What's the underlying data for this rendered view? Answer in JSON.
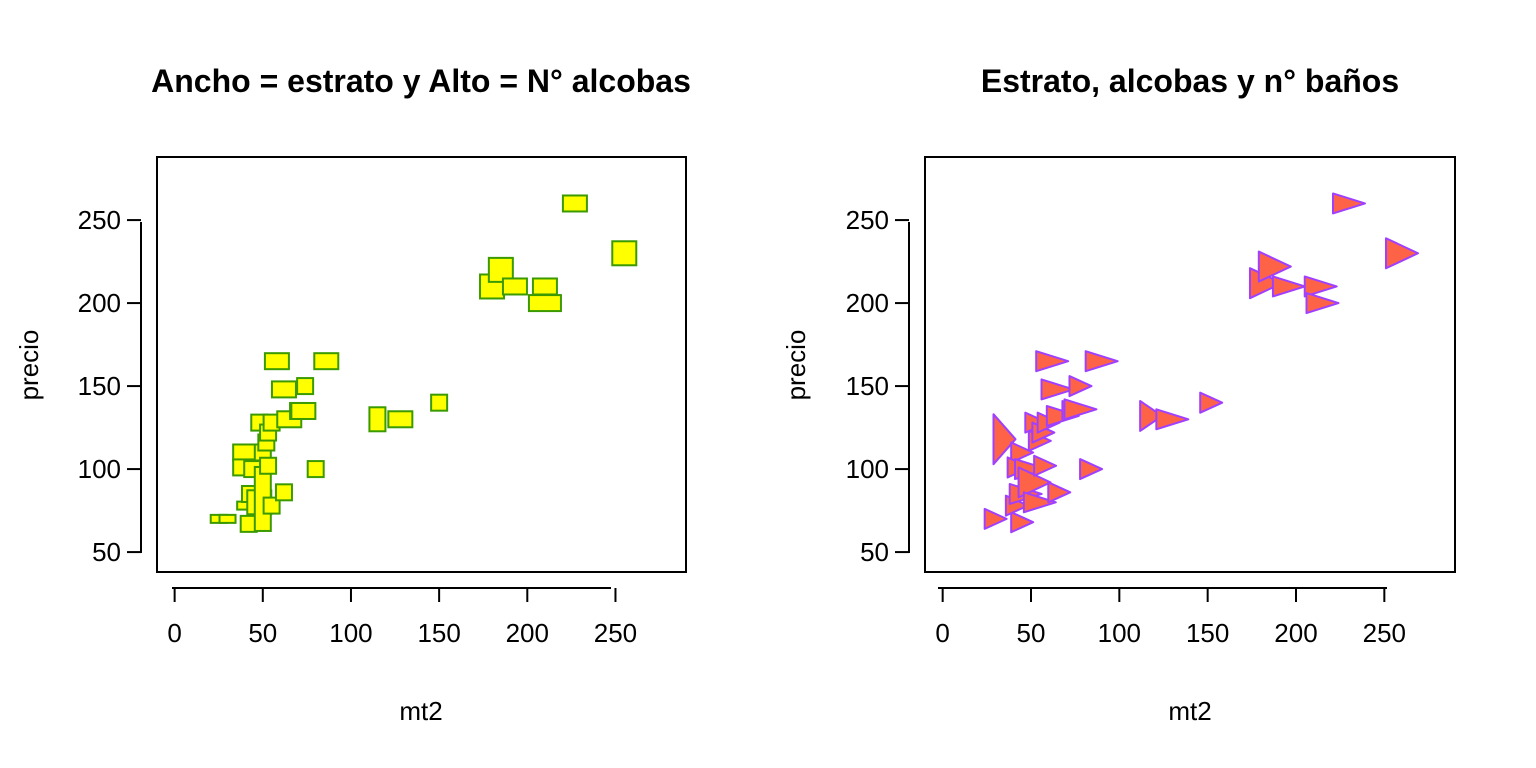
{
  "chart_data": [
    {
      "type": "scatter",
      "title": "Ancho = estrato y Alto = N° alcobas",
      "xlabel": "mt2",
      "ylabel": "precio",
      "xlim": [
        -10,
        290
      ],
      "ylim": [
        38,
        288
      ],
      "xticks": [
        0,
        50,
        100,
        150,
        200,
        250
      ],
      "yticks": [
        50,
        100,
        150,
        200,
        250
      ],
      "marker": "rectangle",
      "marker_fill": "#ffff00",
      "marker_stroke": "#3a9a00",
      "marker_size_encoding": "width = estrato, height = N° alcobas",
      "points": [
        {
          "x": 25,
          "y": 70,
          "w": 2,
          "h": 1
        },
        {
          "x": 30,
          "y": 70,
          "w": 2,
          "h": 1
        },
        {
          "x": 40,
          "y": 78,
          "w": 2,
          "h": 1
        },
        {
          "x": 40,
          "y": 110,
          "w": 3,
          "h": 2
        },
        {
          "x": 40,
          "y": 101,
          "w": 3,
          "h": 2
        },
        {
          "x": 42,
          "y": 67,
          "w": 2,
          "h": 2
        },
        {
          "x": 45,
          "y": 85,
          "w": 3,
          "h": 2
        },
        {
          "x": 44,
          "y": 100,
          "w": 2,
          "h": 2
        },
        {
          "x": 48,
          "y": 128,
          "w": 2,
          "h": 2
        },
        {
          "x": 48,
          "y": 80,
          "w": 3,
          "h": 3
        },
        {
          "x": 50,
          "y": 82,
          "w": 2,
          "h": 8
        },
        {
          "x": 50,
          "y": 110,
          "w": 2,
          "h": 2
        },
        {
          "x": 52,
          "y": 116,
          "w": 2,
          "h": 2
        },
        {
          "x": 53,
          "y": 122,
          "w": 2,
          "h": 2
        },
        {
          "x": 53,
          "y": 102,
          "w": 2,
          "h": 2
        },
        {
          "x": 55,
          "y": 128,
          "w": 2,
          "h": 2
        },
        {
          "x": 55,
          "y": 78,
          "w": 2,
          "h": 2
        },
        {
          "x": 58,
          "y": 165,
          "w": 3,
          "h": 2
        },
        {
          "x": 62,
          "y": 148,
          "w": 3,
          "h": 2
        },
        {
          "x": 62,
          "y": 86,
          "w": 2,
          "h": 2
        },
        {
          "x": 65,
          "y": 130,
          "w": 3,
          "h": 2
        },
        {
          "x": 70,
          "y": 135,
          "w": 2,
          "h": 2
        },
        {
          "x": 73,
          "y": 135,
          "w": 3,
          "h": 2
        },
        {
          "x": 74,
          "y": 150,
          "w": 2,
          "h": 2
        },
        {
          "x": 80,
          "y": 100,
          "w": 2,
          "h": 2
        },
        {
          "x": 86,
          "y": 165,
          "w": 3,
          "h": 2
        },
        {
          "x": 115,
          "y": 130,
          "w": 2,
          "h": 3
        },
        {
          "x": 128,
          "y": 130,
          "w": 3,
          "h": 2
        },
        {
          "x": 150,
          "y": 140,
          "w": 2,
          "h": 2
        },
        {
          "x": 180,
          "y": 210,
          "w": 3,
          "h": 3
        },
        {
          "x": 185,
          "y": 220,
          "w": 3,
          "h": 3
        },
        {
          "x": 193,
          "y": 210,
          "w": 3,
          "h": 2
        },
        {
          "x": 210,
          "y": 210,
          "w": 3,
          "h": 2
        },
        {
          "x": 210,
          "y": 200,
          "w": 4,
          "h": 2
        },
        {
          "x": 227,
          "y": 260,
          "w": 3,
          "h": 2
        },
        {
          "x": 255,
          "y": 230,
          "w": 3,
          "h": 3
        }
      ]
    },
    {
      "type": "scatter",
      "title": "Estrato, alcobas y n° baños",
      "xlabel": "mt2",
      "ylabel": "precio",
      "xlim": [
        -10,
        290
      ],
      "ylim": [
        38,
        288
      ],
      "xticks": [
        0,
        50,
        100,
        150,
        200,
        250
      ],
      "yticks": [
        50,
        100,
        150,
        200,
        250
      ],
      "marker": "triangle-right",
      "marker_fill": "#ff6347",
      "marker_stroke": "#a040ff",
      "marker_size_encoding": "estrato, alcobas y n° baños",
      "points": [
        {
          "x": 30,
          "y": 70,
          "w": 1,
          "h": 1
        },
        {
          "x": 45,
          "y": 68,
          "w": 1,
          "h": 1
        },
        {
          "x": 35,
          "y": 118,
          "w": 1,
          "h": 4
        },
        {
          "x": 42,
          "y": 78,
          "w": 1,
          "h": 1
        },
        {
          "x": 45,
          "y": 110,
          "w": 1,
          "h": 1
        },
        {
          "x": 43,
          "y": 101,
          "w": 1,
          "h": 1
        },
        {
          "x": 47,
          "y": 85,
          "w": 2,
          "h": 1
        },
        {
          "x": 50,
          "y": 100,
          "w": 2,
          "h": 1
        },
        {
          "x": 52,
          "y": 92,
          "w": 2,
          "h": 2
        },
        {
          "x": 53,
          "y": 128,
          "w": 1,
          "h": 1
        },
        {
          "x": 55,
          "y": 80,
          "w": 2,
          "h": 1
        },
        {
          "x": 55,
          "y": 117,
          "w": 1,
          "h": 1
        },
        {
          "x": 57,
          "y": 122,
          "w": 1,
          "h": 1
        },
        {
          "x": 58,
          "y": 102,
          "w": 1,
          "h": 1
        },
        {
          "x": 60,
          "y": 128,
          "w": 1,
          "h": 1
        },
        {
          "x": 62,
          "y": 165,
          "w": 2,
          "h": 1
        },
        {
          "x": 65,
          "y": 148,
          "w": 2,
          "h": 1
        },
        {
          "x": 66,
          "y": 86,
          "w": 1,
          "h": 1
        },
        {
          "x": 68,
          "y": 132,
          "w": 2,
          "h": 1
        },
        {
          "x": 74,
          "y": 135,
          "w": 1,
          "h": 1
        },
        {
          "x": 78,
          "y": 136,
          "w": 2,
          "h": 1
        },
        {
          "x": 78,
          "y": 150,
          "w": 1,
          "h": 1
        },
        {
          "x": 84,
          "y": 100,
          "w": 1,
          "h": 1
        },
        {
          "x": 90,
          "y": 165,
          "w": 2,
          "h": 1
        },
        {
          "x": 118,
          "y": 132,
          "w": 1,
          "h": 2
        },
        {
          "x": 130,
          "y": 130,
          "w": 2,
          "h": 1
        },
        {
          "x": 152,
          "y": 140,
          "w": 1,
          "h": 1
        },
        {
          "x": 183,
          "y": 212,
          "w": 2,
          "h": 2
        },
        {
          "x": 188,
          "y": 222,
          "w": 2,
          "h": 2
        },
        {
          "x": 196,
          "y": 210,
          "w": 2,
          "h": 1
        },
        {
          "x": 214,
          "y": 210,
          "w": 2,
          "h": 1
        },
        {
          "x": 215,
          "y": 200,
          "w": 2,
          "h": 1
        },
        {
          "x": 230,
          "y": 260,
          "w": 2,
          "h": 1
        },
        {
          "x": 260,
          "y": 230,
          "w": 2,
          "h": 2
        }
      ]
    }
  ]
}
